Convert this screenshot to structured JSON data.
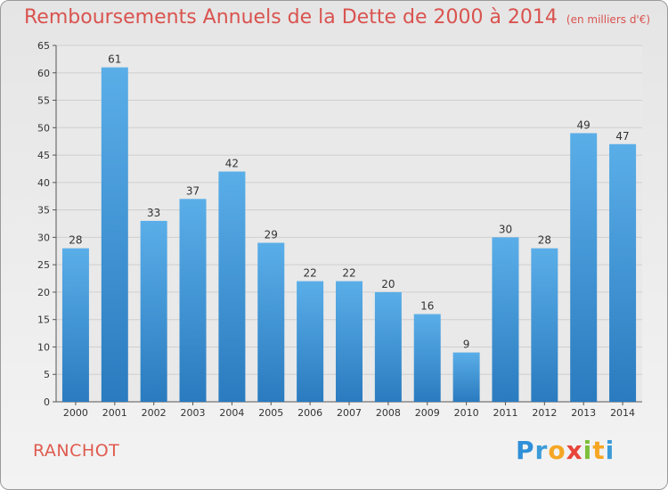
{
  "title": "Remboursements Annuels de la Dette de 2000 à 2014",
  "unit_note": "(en milliers d'€)",
  "place": "RANCHOT",
  "logo": "Proxiti",
  "colors": {
    "bar_light": "#5aaee8",
    "bar_dark": "#2a7bbf",
    "title": "#d9534f",
    "grid": "#cfcfcf"
  },
  "chart_data": {
    "type": "bar",
    "title": "Remboursements Annuels de la Dette de 2000 à 2014",
    "categories": [
      "2000",
      "2001",
      "2002",
      "2003",
      "2004",
      "2005",
      "2006",
      "2007",
      "2008",
      "2009",
      "2010",
      "2011",
      "2012",
      "2013",
      "2014"
    ],
    "values": [
      28,
      61,
      33,
      37,
      42,
      29,
      22,
      22,
      20,
      16,
      9,
      30,
      28,
      49,
      47
    ],
    "ylim": [
      0,
      65
    ],
    "yticks": [
      0,
      5,
      10,
      15,
      20,
      25,
      30,
      35,
      40,
      45,
      50,
      55,
      60,
      65
    ],
    "xlabel": "",
    "ylabel": "",
    "grid": true
  }
}
